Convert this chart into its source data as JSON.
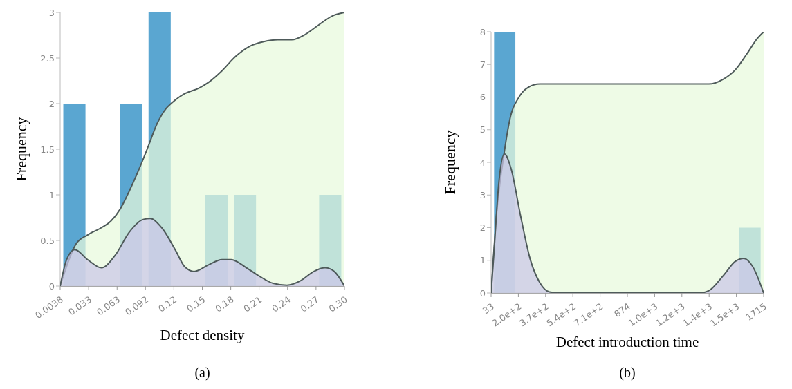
{
  "chart_data": [
    {
      "type": "histogram",
      "xlabel": "Defect density",
      "ylabel": "Frequency",
      "annotations": [
        "(a)"
      ],
      "bins": [
        0.0038,
        0.0333,
        0.0628,
        0.0922,
        0.1217,
        0.1512,
        0.1807,
        0.2101,
        0.2396,
        0.2691,
        0.2986
      ],
      "xlim": [
        0.0038,
        0.2986
      ],
      "xticks": [
        0.0038,
        {
          "value": 0.0333,
          "label": "0.033"
        },
        {
          "value": 0.0628,
          "label": "0.063"
        },
        {
          "value": 0.0922,
          "label": "0.092"
        },
        {
          "value": 0.1217,
          "label": "0.12"
        },
        {
          "value": 0.1512,
          "label": "0.15"
        },
        {
          "value": 0.1807,
          "label": "0.18"
        },
        {
          "value": 0.2101,
          "label": "0.21"
        },
        {
          "value": 0.2396,
          "label": "0.24"
        },
        {
          "value": 0.2691,
          "label": "0.27"
        },
        {
          "value": 0.2986,
          "label": "0.30"
        }
      ],
      "ylim": [
        0,
        3
      ],
      "yticks": [
        0,
        0.5,
        1,
        1.5,
        2,
        2.5,
        3
      ],
      "series": [
        {
          "type": "histogram",
          "color": "#5aa6d1",
          "values": [
            2,
            0,
            2,
            3,
            0,
            1,
            1,
            0,
            0,
            1
          ]
        },
        {
          "type": "area",
          "color": "#e8fadc",
          "x": [
            0.0038,
            0.0202,
            0.0322,
            0.0466,
            0.0562,
            0.0658,
            0.0754,
            0.0851,
            0.0947,
            0.1043,
            0.1139,
            0.1187,
            0.1331,
            0.1476,
            0.1572,
            0.1716,
            0.186,
            0.2005,
            0.2149,
            0.2293,
            0.2437,
            0.2582,
            0.2715,
            0.2856,
            0.2986
          ],
          "values": [
            0,
            0.46,
            0.56,
            0.64,
            0.71,
            0.84,
            1.04,
            1.27,
            1.52,
            1.78,
            1.95,
            2.0,
            2.11,
            2.17,
            2.23,
            2.36,
            2.52,
            2.63,
            2.68,
            2.7,
            2.7,
            2.76,
            2.86,
            2.96,
            3.0
          ]
        },
        {
          "type": "area",
          "color": "#cbc6e8",
          "x": [
            0.0038,
            0.0105,
            0.0189,
            0.0322,
            0.0466,
            0.061,
            0.0754,
            0.0899,
            0.0971,
            0.1091,
            0.1235,
            0.1331,
            0.1427,
            0.1572,
            0.1716,
            0.1812,
            0.1956,
            0.2101,
            0.2245,
            0.2389,
            0.2533,
            0.2668,
            0.2785,
            0.288,
            0.2986
          ],
          "values": [
            0,
            0.29,
            0.4,
            0.29,
            0.2,
            0.34,
            0.59,
            0.73,
            0.74,
            0.64,
            0.39,
            0.21,
            0.16,
            0.23,
            0.29,
            0.29,
            0.21,
            0.11,
            0.03,
            0.01,
            0.06,
            0.16,
            0.2,
            0.16,
            0
          ]
        }
      ]
    },
    {
      "type": "histogram",
      "xlabel": "Defect introduction time",
      "ylabel": "Frequency",
      "annotations": [
        "(b)"
      ],
      "bins": [
        33,
        201.2,
        369.4,
        537.6,
        705.8,
        874,
        1042.2,
        1210.4,
        1378.6,
        1546.8,
        1715
      ],
      "xlim": [
        33,
        1715
      ],
      "xticks": [
        33,
        {
          "value": 201.2,
          "label": "2.0e+2"
        },
        {
          "value": 369.4,
          "label": "3.7e+2"
        },
        {
          "value": 537.6,
          "label": "5.4e+2"
        },
        {
          "value": 705.8,
          "label": "7.1e+2"
        },
        874,
        {
          "value": 1042.2,
          "label": "1.0e+3"
        },
        {
          "value": 1210.4,
          "label": "1.2e+3"
        },
        {
          "value": 1378.6,
          "label": "1.4e+3"
        },
        {
          "value": 1546.8,
          "label": "1.5e+3"
        },
        1715
      ],
      "ylim": [
        0,
        8
      ],
      "yticks": [
        0,
        1,
        2,
        3,
        4,
        5,
        6,
        7,
        8
      ],
      "series": [
        {
          "type": "histogram",
          "color": "#5aa6d1",
          "values": [
            8,
            0,
            0,
            0,
            0,
            0,
            0,
            0,
            0,
            2
          ]
        },
        {
          "type": "area",
          "color": "#e8fadc",
          "x": [
            33,
            66,
            111,
            155,
            200,
            259,
            334,
            453,
            1377,
            1466,
            1541,
            1615,
            1675,
            1715
          ],
          "values": [
            0,
            2.36,
            4.2,
            5.45,
            5.96,
            6.29,
            6.4,
            6.4,
            6.4,
            6.55,
            6.84,
            7.35,
            7.79,
            8
          ]
        },
        {
          "type": "area",
          "color": "#cbc6e8",
          "x": [
            33,
            51,
            81,
            115,
            155,
            215,
            274,
            334,
            393,
            453,
            1318,
            1377,
            1466,
            1541,
            1593,
            1646,
            1715
          ],
          "values": [
            0,
            1.26,
            3.39,
            4.26,
            3.83,
            2.36,
            1.04,
            0.31,
            0.03,
            0,
            0,
            0.07,
            0.53,
            0.97,
            1.06,
            0.82,
            0
          ]
        }
      ]
    }
  ]
}
